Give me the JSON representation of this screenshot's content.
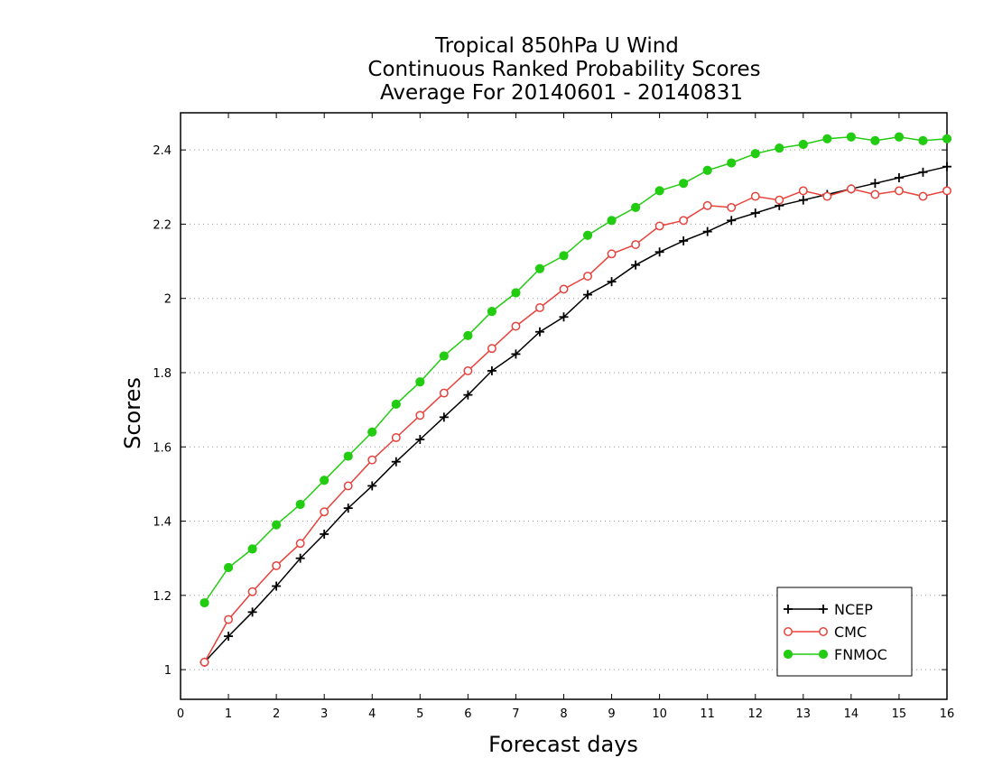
{
  "chart_data": {
    "type": "line",
    "title_lines": [
      "Tropical 850hPa U Wind",
      "Continuous Ranked Probability Scores",
      "Average For 20140601 - 20140831"
    ],
    "xlabel": "Forecast days",
    "ylabel": "Scores",
    "xlim": [
      0,
      16
    ],
    "ylim": [
      0.92,
      2.5
    ],
    "xticks": [
      0,
      1,
      2,
      3,
      4,
      5,
      6,
      7,
      8,
      9,
      10,
      11,
      12,
      13,
      14,
      15,
      16
    ],
    "yticks": [
      1,
      1.2,
      1.4,
      1.6,
      1.8,
      2,
      2.2,
      2.4
    ],
    "ytick_labels": [
      "1",
      "1.2",
      "1.4",
      "1.6",
      "1.8",
      "2",
      "2.2",
      "2.4"
    ],
    "grid": "horizontal dotted",
    "legend_position": "bottom-right",
    "x": [
      0.5,
      1,
      1.5,
      2,
      2.5,
      3,
      3.5,
      4,
      4.5,
      5,
      5.5,
      6,
      6.5,
      7,
      7.5,
      8,
      8.5,
      9,
      9.5,
      10,
      10.5,
      11,
      11.5,
      12,
      12.5,
      13,
      13.5,
      14,
      14.5,
      15,
      15.5,
      16
    ],
    "series": [
      {
        "name": "NCEP",
        "color": "#000000",
        "marker": "plus",
        "values": [
          1.02,
          1.09,
          1.155,
          1.225,
          1.3,
          1.365,
          1.435,
          1.495,
          1.56,
          1.62,
          1.68,
          1.74,
          1.805,
          1.85,
          1.91,
          1.95,
          2.01,
          2.045,
          2.09,
          2.125,
          2.155,
          2.18,
          2.21,
          2.23,
          2.25,
          2.265,
          2.28,
          2.295,
          2.31,
          2.325,
          2.34,
          2.355
        ]
      },
      {
        "name": "CMC",
        "color": "#e8423c",
        "marker": "open-circle",
        "values": [
          1.02,
          1.135,
          1.21,
          1.28,
          1.34,
          1.425,
          1.495,
          1.565,
          1.625,
          1.685,
          1.745,
          1.805,
          1.865,
          1.925,
          1.975,
          2.025,
          2.06,
          2.12,
          2.145,
          2.195,
          2.21,
          2.25,
          2.245,
          2.275,
          2.265,
          2.29,
          2.275,
          2.295,
          2.28,
          2.29,
          2.275,
          2.29
        ]
      },
      {
        "name": "FNMOC",
        "color": "#22cc11",
        "marker": "filled-circle",
        "values": [
          1.18,
          1.275,
          1.325,
          1.39,
          1.445,
          1.51,
          1.575,
          1.64,
          1.715,
          1.775,
          1.845,
          1.9,
          1.965,
          2.015,
          2.08,
          2.115,
          2.17,
          2.21,
          2.245,
          2.29,
          2.31,
          2.345,
          2.365,
          2.39,
          2.405,
          2.415,
          2.43,
          2.435,
          2.425,
          2.435,
          2.425,
          2.43
        ]
      }
    ]
  }
}
